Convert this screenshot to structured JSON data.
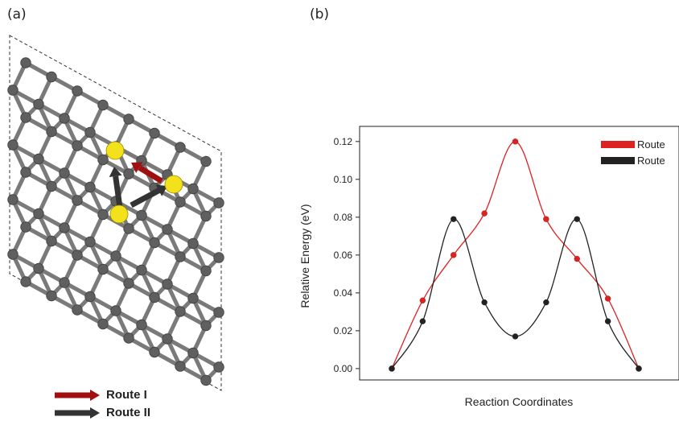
{
  "panels": {
    "a": "(a)",
    "b": "(b)"
  },
  "structure": {
    "atom_color": "#5f5f5f",
    "adatom_color": "#f3e21b",
    "arrow_colors": {
      "route_I": "#a01010",
      "route_II": "#333333"
    },
    "legend": [
      {
        "label": "Route I",
        "color": "#a01010"
      },
      {
        "label": "Route II",
        "color": "#333333"
      }
    ]
  },
  "chart_data": {
    "type": "line",
    "title": "",
    "xlabel": "Reaction Coordinates",
    "ylabel": "Relative Energy (eV)",
    "ylim": [
      -0.006,
      0.128
    ],
    "yticks": [
      "0.00",
      "0.02",
      "0.04",
      "0.06",
      "0.08",
      "0.10",
      "0.12"
    ],
    "legend_position": "top-right",
    "series": [
      {
        "name": "Route",
        "color": "#dd2222",
        "x": [
          0,
          1,
          2,
          3,
          4,
          5,
          6,
          7,
          8
        ],
        "values": [
          0.0,
          0.036,
          0.06,
          0.082,
          0.12,
          0.079,
          0.058,
          0.037,
          0.0
        ]
      },
      {
        "name": "Route",
        "color": "#222222",
        "x": [
          0,
          1,
          2,
          3,
          4,
          5,
          6,
          7,
          8
        ],
        "values": [
          0.0,
          0.025,
          0.079,
          0.035,
          0.017,
          0.035,
          0.079,
          0.025,
          0.0
        ]
      }
    ]
  }
}
